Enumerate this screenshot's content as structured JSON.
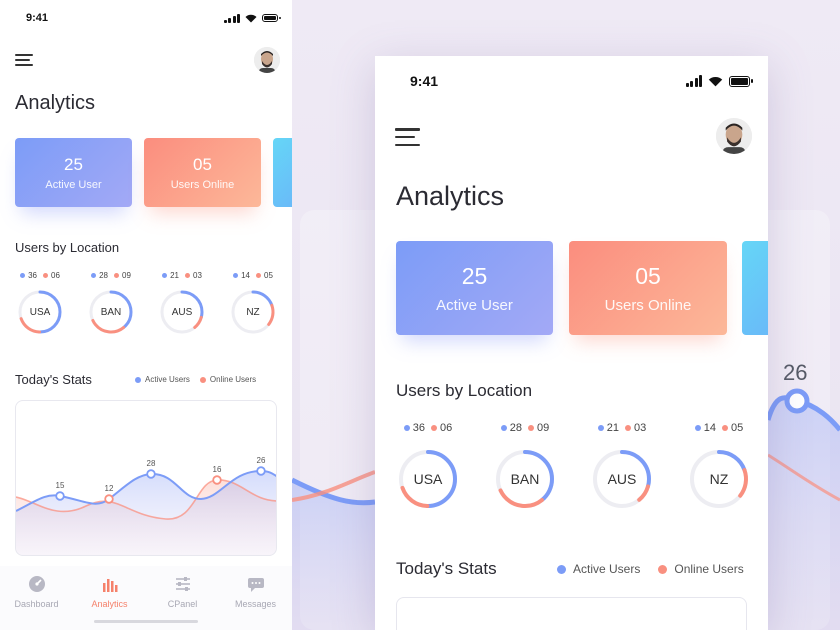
{
  "status": {
    "time": "9:41"
  },
  "title": "Analytics",
  "cards": [
    {
      "value": "25",
      "label": "Active User",
      "style": "blue"
    },
    {
      "value": "05",
      "label": "Users Online",
      "style": "orange"
    }
  ],
  "location": {
    "heading": "Users by Location",
    "items": [
      {
        "name": "USA",
        "active": "36",
        "online": "06",
        "active_frac": 0.36,
        "online_frac": 0.06
      },
      {
        "name": "BAN",
        "active": "28",
        "online": "09",
        "active_frac": 0.28,
        "online_frac": 0.09
      },
      {
        "name": "AUS",
        "active": "21",
        "online": "03",
        "active_frac": 0.21,
        "online_frac": 0.03
      },
      {
        "name": "NZ",
        "active": "14",
        "online": "05",
        "active_frac": 0.14,
        "online_frac": 0.05
      }
    ]
  },
  "stats": {
    "heading": "Today's Stats",
    "legend_active": "Active Users",
    "legend_online": "Online Users"
  },
  "chart_data": {
    "type": "area",
    "title": "Today's Stats",
    "series": [
      {
        "name": "Active Users",
        "color": "#7c9cf7",
        "points": [
          [
            "p1",
            15
          ],
          [
            "p3",
            28
          ],
          [
            "p5",
            26
          ]
        ]
      },
      {
        "name": "Online Users",
        "color": "#f99080",
        "points": [
          [
            "p2",
            12
          ],
          [
            "p4",
            16
          ]
        ]
      }
    ],
    "labels": [
      "15",
      "12",
      "28",
      "16",
      "26"
    ],
    "background_label": "26"
  },
  "tabs": [
    {
      "label": "Dashboard",
      "icon": "dashboard-icon",
      "active": false
    },
    {
      "label": "Analytics",
      "icon": "analytics-icon",
      "active": true
    },
    {
      "label": "CPanel",
      "icon": "sliders-icon",
      "active": false
    },
    {
      "label": "Messages",
      "icon": "messages-icon",
      "active": false
    }
  ],
  "colors": {
    "active": "#7c9cf7",
    "online": "#f99080",
    "accent": "#f5816b"
  }
}
